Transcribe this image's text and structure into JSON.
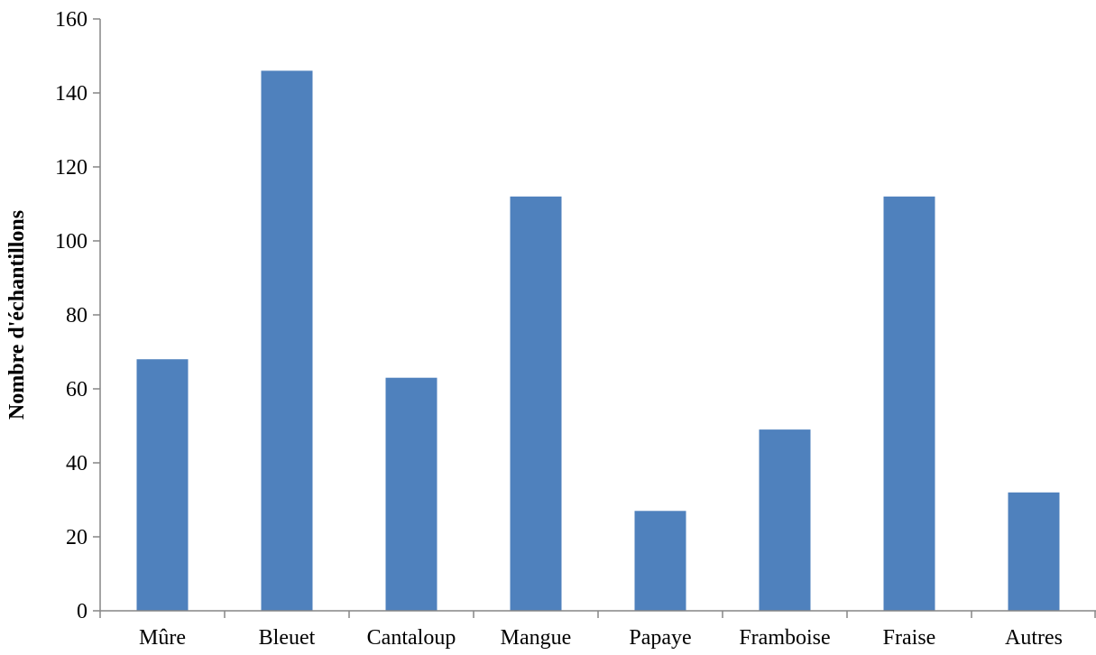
{
  "chart_data": {
    "type": "bar",
    "title": "",
    "xlabel": "",
    "ylabel": "Nombre d'échantillons",
    "categories": [
      "Mûre",
      "Bleuet",
      "Cantaloup",
      "Mangue",
      "Papaye",
      "Framboise",
      "Fraise",
      "Autres"
    ],
    "values": [
      68,
      146,
      63,
      112,
      27,
      49,
      112,
      32
    ],
    "ylim": [
      0,
      160
    ],
    "yticks": [
      0,
      20,
      40,
      60,
      80,
      100,
      120,
      140,
      160
    ],
    "grid": false,
    "legend": "none",
    "bar_color": "#4f81bd"
  }
}
